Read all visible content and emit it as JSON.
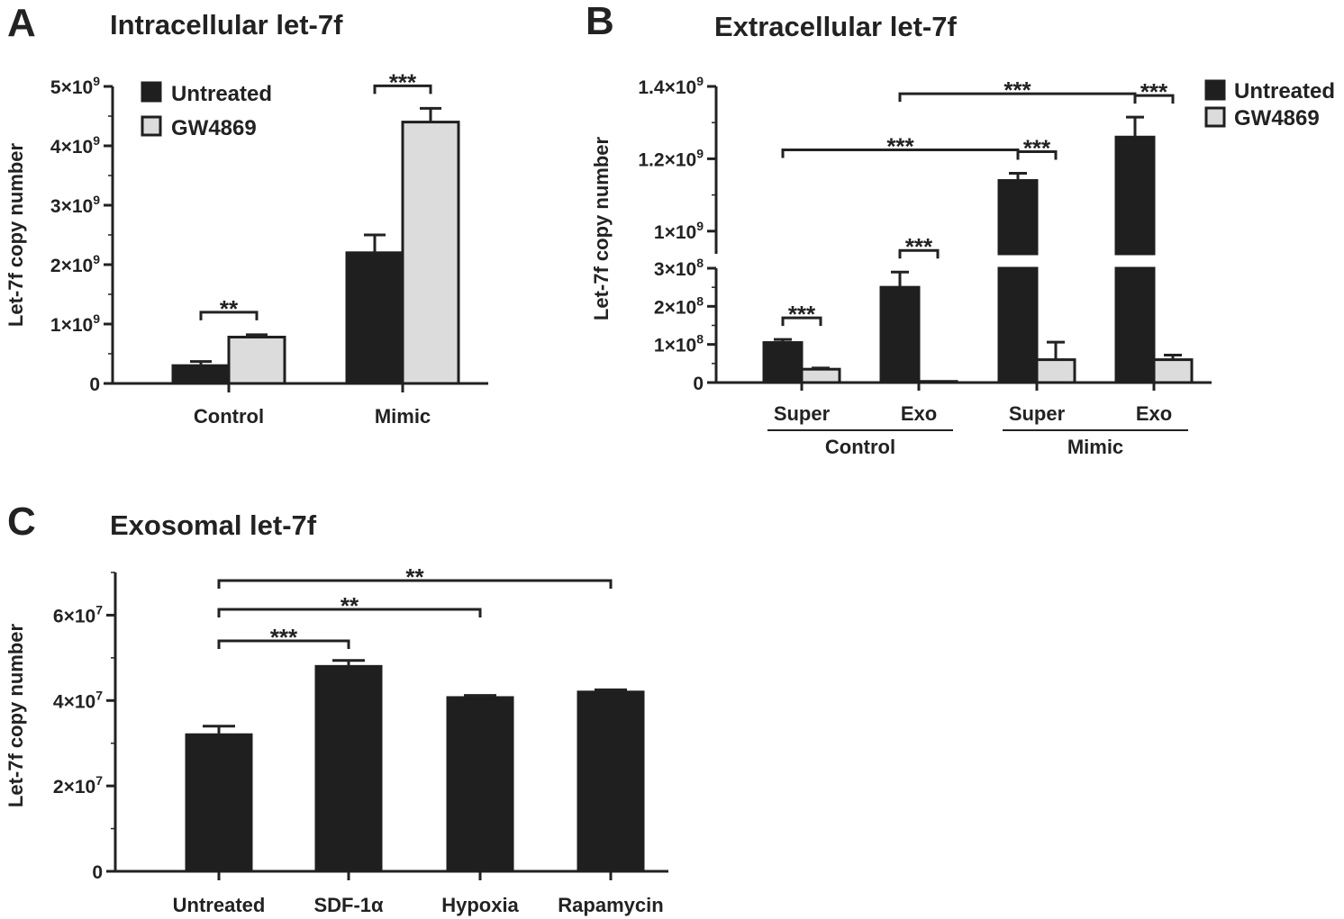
{
  "panels": {
    "A": {
      "label": "A",
      "title": "Intracellular let-7f"
    },
    "B": {
      "label": "B",
      "title": "Extracellular let-7f"
    },
    "C": {
      "label": "C",
      "title": "Exosomal let-7f"
    }
  },
  "colors": {
    "untreated": "#1f1f1f",
    "gw4869": "#dcdcdc",
    "axis": "#222222"
  },
  "chart_data": [
    {
      "panel": "A",
      "type": "bar",
      "title": "Intracellular let-7f",
      "ylabel": "Let-7f copy number",
      "ylim": [
        0,
        5000000000.0
      ],
      "yticks": [
        {
          "v": 0,
          "base": "0",
          "exp": ""
        },
        {
          "v": 1000000000.0,
          "base": "1×10",
          "exp": "9"
        },
        {
          "v": 2000000000.0,
          "base": "2×10",
          "exp": "9"
        },
        {
          "v": 3000000000.0,
          "base": "3×10",
          "exp": "9"
        },
        {
          "v": 4000000000.0,
          "base": "4×10",
          "exp": "9"
        },
        {
          "v": 5000000000.0,
          "base": "5×10",
          "exp": "9"
        }
      ],
      "categories": [
        "Control",
        "Mimic"
      ],
      "series": [
        {
          "name": "Untreated",
          "values": [
            300000000.0,
            2200000000.0
          ],
          "errors": [
            70000000.0,
            300000000.0
          ]
        },
        {
          "name": "GW4869",
          "values": [
            780000000.0,
            4400000000.0
          ],
          "errors": [
            40000000.0,
            230000000.0
          ]
        }
      ],
      "significance": [
        {
          "from": [
            0,
            0
          ],
          "to": [
            0,
            1
          ],
          "label": "**"
        },
        {
          "from": [
            1,
            0
          ],
          "to": [
            1,
            1
          ],
          "label": "***"
        }
      ]
    },
    {
      "panel": "B",
      "type": "bar",
      "title": "Extracellular let-7f",
      "ylabel": "Let-7f copy number",
      "broken_axis": true,
      "lower_ylim": [
        0,
        300000000.0
      ],
      "upper_ylim": [
        900000000.0,
        1400000000.0
      ],
      "yticks_lower": [
        {
          "v": 0,
          "base": "0",
          "exp": ""
        },
        {
          "v": 100000000.0,
          "base": "1×10",
          "exp": "8"
        },
        {
          "v": 200000000.0,
          "base": "2×10",
          "exp": "8"
        },
        {
          "v": 300000000.0,
          "base": "3×10",
          "exp": "8"
        }
      ],
      "yticks_upper": [
        {
          "v": 1000000000.0,
          "base": "1×10",
          "exp": "9"
        },
        {
          "v": 1200000000.0,
          "base": "1.2×10",
          "exp": "9"
        },
        {
          "v": 1400000000.0,
          "base": "1.4×10",
          "exp": "9"
        }
      ],
      "categories": [
        "Super",
        "Exo",
        "Super",
        "Exo"
      ],
      "groups": [
        {
          "label": "Control",
          "span": [
            0,
            1
          ]
        },
        {
          "label": "Mimic",
          "span": [
            2,
            3
          ]
        }
      ],
      "series": [
        {
          "name": "Untreated",
          "values": [
            105000000.0,
            250000000.0,
            1140000000.0,
            1260000000.0
          ],
          "errors": [
            8000000.0,
            40000000.0,
            20000000.0,
            55000000.0
          ]
        },
        {
          "name": "GW4869",
          "values": [
            35000000.0,
            3000000.0,
            60000000.0,
            60000000.0
          ],
          "errors": [
            3000000.0,
            0,
            46000000.0,
            12000000.0
          ]
        }
      ],
      "significance": [
        {
          "from": [
            0,
            0
          ],
          "to": [
            0,
            1
          ],
          "label": "***"
        },
        {
          "from": [
            1,
            0
          ],
          "to": [
            1,
            1
          ],
          "label": "***"
        },
        {
          "from": [
            2,
            0
          ],
          "to": [
            2,
            1
          ],
          "label": "***"
        },
        {
          "from": [
            3,
            0
          ],
          "to": [
            3,
            1
          ],
          "label": "***"
        },
        {
          "from": [
            0,
            0
          ],
          "to": [
            2,
            0
          ],
          "label": "***"
        },
        {
          "from": [
            1,
            0
          ],
          "to": [
            3,
            0
          ],
          "label": "***"
        }
      ]
    },
    {
      "panel": "C",
      "type": "bar",
      "title": "Exosomal let-7f",
      "ylabel": "Let-7f copy number",
      "ylim": [
        0,
        70000000.0
      ],
      "yticks": [
        {
          "v": 0,
          "base": "0",
          "exp": ""
        },
        {
          "v": 20000000.0,
          "base": "2×10",
          "exp": "7"
        },
        {
          "v": 40000000.0,
          "base": "4×10",
          "exp": "7"
        },
        {
          "v": 60000000.0,
          "base": "6×10",
          "exp": "7"
        }
      ],
      "categories": [
        "Untreated",
        "SDF-1α",
        "Hypoxia",
        "Rapamycin"
      ],
      "series": [
        {
          "name": "Untreated",
          "values": [
            32000000.0,
            48000000.0,
            40700000.0,
            42000000.0
          ],
          "errors": [
            2000000.0,
            1400000.0,
            500000.0,
            500000.0
          ]
        }
      ],
      "significance": [
        {
          "from": [
            0,
            0
          ],
          "to": [
            1,
            0
          ],
          "label": "***"
        },
        {
          "from": [
            0,
            0
          ],
          "to": [
            2,
            0
          ],
          "label": "**"
        },
        {
          "from": [
            0,
            0
          ],
          "to": [
            3,
            0
          ],
          "label": "**"
        }
      ]
    }
  ]
}
